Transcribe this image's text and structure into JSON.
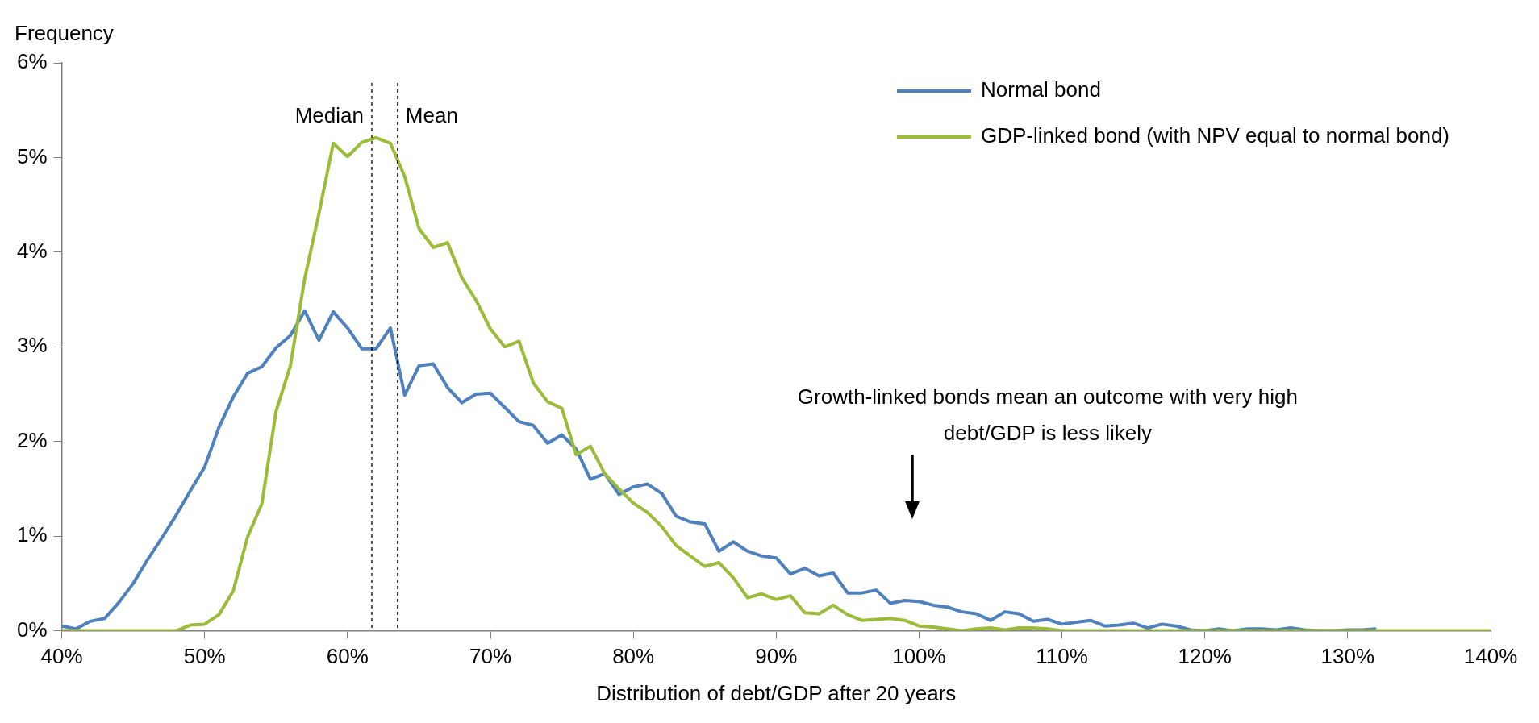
{
  "chart_data": {
    "type": "line",
    "xlabel": "Distribution of debt/GDP after 20 years",
    "ylabel": "Frequency",
    "x": [
      40,
      41,
      42,
      43,
      44,
      45,
      46,
      47,
      48,
      49,
      50,
      51,
      52,
      53,
      54,
      55,
      56,
      57,
      58,
      59,
      60,
      61,
      62,
      63,
      64,
      65,
      66,
      67,
      68,
      69,
      70,
      71,
      72,
      73,
      74,
      75,
      76,
      77,
      78,
      79,
      80,
      81,
      82,
      83,
      84,
      85,
      86,
      87,
      88,
      89,
      90,
      91,
      92,
      93,
      94,
      95,
      96,
      97,
      98,
      99,
      100,
      101,
      102,
      103,
      104,
      105,
      106,
      107,
      108,
      109,
      110,
      111,
      112,
      113,
      114,
      115,
      116,
      117,
      118,
      119,
      120,
      121,
      122,
      123,
      124,
      125,
      126,
      127,
      128,
      129,
      130,
      131,
      132,
      133,
      134,
      135,
      136,
      137,
      138,
      139,
      140
    ],
    "series": [
      {
        "name": "Normal bond",
        "color": "#4f81bd",
        "values": [
          0.05,
          0.02,
          0.1,
          0.13,
          0.3,
          0.5,
          0.75,
          0.98,
          1.22,
          1.48,
          1.73,
          2.15,
          2.47,
          2.72,
          2.79,
          2.99,
          3.12,
          3.38,
          3.07,
          3.37,
          3.2,
          2.98,
          2.98,
          3.2,
          2.49,
          2.8,
          2.82,
          2.57,
          2.41,
          2.5,
          2.51,
          2.36,
          2.21,
          2.17,
          1.98,
          2.07,
          1.92,
          1.6,
          1.66,
          1.44,
          1.52,
          1.55,
          1.45,
          1.21,
          1.15,
          1.13,
          0.84,
          0.94,
          0.84,
          0.79,
          0.77,
          0.6,
          0.66,
          0.58,
          0.61,
          0.4,
          0.4,
          0.43,
          0.29,
          0.32,
          0.31,
          0.27,
          0.25,
          0.2,
          0.18,
          0.11,
          0.2,
          0.18,
          0.1,
          0.12,
          0.07,
          0.09,
          0.11,
          0.05,
          0.06,
          0.08,
          0.03,
          0.07,
          0.05,
          0.01,
          0,
          0.02,
          0,
          0.02,
          0.02,
          0.01,
          0.03,
          0.01,
          0,
          0,
          0.01,
          0.01,
          0.02,
          null,
          null,
          null,
          null,
          null,
          null,
          null,
          null
        ]
      },
      {
        "name": "GDP-linked bond (with NPV equal to normal bond)",
        "color": "#9bbb3b",
        "values": [
          0,
          0,
          0,
          0,
          0,
          0,
          0,
          0,
          0,
          0.06,
          0.07,
          0.17,
          0.42,
          0.99,
          1.34,
          2.32,
          2.8,
          3.72,
          4.41,
          5.15,
          5.01,
          5.16,
          5.21,
          5.15,
          4.8,
          4.25,
          4.05,
          4.1,
          3.73,
          3.49,
          3.19,
          3.0,
          3.06,
          2.62,
          2.42,
          2.35,
          1.86,
          1.95,
          1.66,
          1.5,
          1.35,
          1.25,
          1.1,
          0.9,
          0.79,
          0.68,
          0.72,
          0.56,
          0.35,
          0.39,
          0.33,
          0.37,
          0.19,
          0.18,
          0.27,
          0.17,
          0.11,
          0.12,
          0.13,
          0.11,
          0.05,
          0.04,
          0.02,
          0,
          0.02,
          0.03,
          0.01,
          0.03,
          0.03,
          0.02,
          0,
          0,
          0,
          0,
          0,
          0,
          0,
          0,
          0,
          0,
          0,
          0,
          0,
          0,
          0,
          0,
          0,
          0,
          0,
          0,
          0,
          0,
          0,
          0,
          0,
          0,
          0,
          0,
          0,
          0,
          0
        ]
      }
    ],
    "xlim": [
      40,
      140
    ],
    "xticks": [
      {
        "value": 40,
        "label": "40%"
      },
      {
        "value": 50,
        "label": "50%"
      },
      {
        "value": 60,
        "label": "60%"
      },
      {
        "value": 70,
        "label": "70%"
      },
      {
        "value": 80,
        "label": "80%"
      },
      {
        "value": 90,
        "label": "90%"
      },
      {
        "value": 100,
        "label": "100%"
      },
      {
        "value": 110,
        "label": "110%"
      },
      {
        "value": 120,
        "label": "120%"
      },
      {
        "value": 130,
        "label": "130%"
      },
      {
        "value": 140,
        "label": "140%"
      }
    ],
    "ylim": [
      0,
      6
    ],
    "yticks": [
      {
        "value": 0,
        "label": "0%"
      },
      {
        "value": 1,
        "label": "1%"
      },
      {
        "value": 2,
        "label": "2%"
      },
      {
        "value": 3,
        "label": "3%"
      },
      {
        "value": 4,
        "label": "4%"
      },
      {
        "value": 5,
        "label": "5%"
      },
      {
        "value": 6,
        "label": "6%"
      }
    ],
    "ref_lines": [
      {
        "axis": "x",
        "value": 61.7,
        "label": "Median",
        "color": "#000000",
        "line_style": "dashed"
      },
      {
        "axis": "x",
        "value": 63.5,
        "label": "Mean",
        "color": "#000000",
        "line_style": "dashed"
      }
    ],
    "annotations": [
      "Growth-linked bonds mean an outcome with very high debt/GDP is less likely"
    ],
    "legend": "top right",
    "grid": false,
    "marker": "none",
    "line_style": "solid"
  }
}
